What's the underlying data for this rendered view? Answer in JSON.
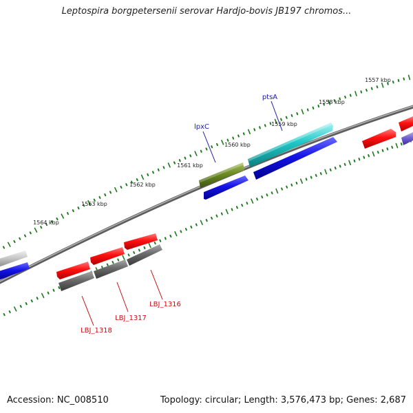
{
  "title": "Leptospira borgpetersenii serovar Hardjo-bovis JB197 chromos...",
  "footer": {
    "accession": "Accession: NC_008510",
    "summary": "Topology: circular; Length: 3,576,473 bp; Genes: 2,687"
  },
  "scale_labels": [
    "1557 kbp",
    "1558 kbp",
    "1559 kbp",
    "1560 kbp",
    "1561 kbp",
    "1562 kbp",
    "1563 kbp",
    "1564 kbp"
  ],
  "gene_labels": {
    "ptsA": "ptsA",
    "lpxC": "lpxC",
    "lbj1316": "LBJ_1316",
    "lbj1317": "LBJ_1317",
    "lbj1318": "LBJ_1318"
  },
  "colors": {
    "backbone": "#7a7a7a",
    "tick": "#1f7a1f",
    "cds_forward": "#ff1010",
    "cds_reverse": "#1010e0",
    "ptsA": "#20c8c8",
    "lpxC": "#6a8a20",
    "pseudo_gray": "#6e6e6e",
    "light_gray": "#c8c8c8",
    "purple": "#7060d0",
    "label_blue": "#1a1aa6",
    "label_red": "#c41010"
  }
}
